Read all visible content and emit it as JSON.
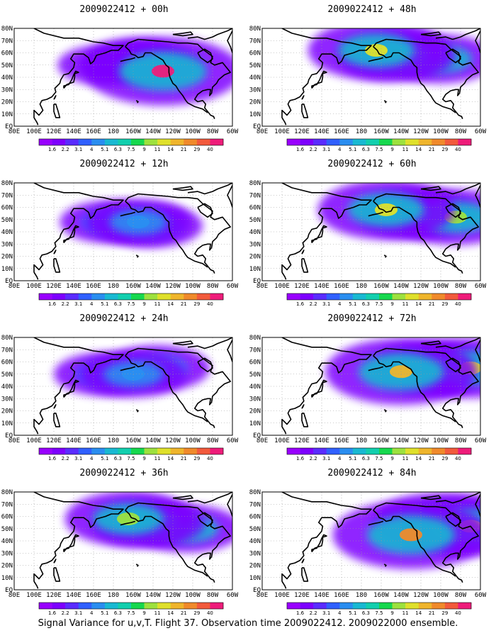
{
  "figure": {
    "caption": "Signal Variance for u,v,T. Flight 37. Observation time 2009022412. 2009022000 ensemble."
  },
  "axes": {
    "lon_ticks": [
      "80E",
      "100E",
      "120E",
      "140E",
      "160E",
      "180",
      "160W",
      "140W",
      "120W",
      "100W",
      "80W",
      "60W"
    ],
    "lat_ticks": [
      "EQ",
      "10N",
      "20N",
      "30N",
      "40N",
      "50N",
      "60N",
      "70N",
      "80N"
    ],
    "lon_range_deg_east": [
      80,
      300
    ],
    "lat_range": [
      0,
      80
    ]
  },
  "colorbar": {
    "levels": [
      "1.6",
      "2.2",
      "3.1",
      "4",
      "5.1",
      "6.3",
      "7.5",
      "9",
      "11",
      "14",
      "21",
      "29",
      "40"
    ],
    "colors": [
      "#9900ff",
      "#7d00ff",
      "#5a2cff",
      "#3060ff",
      "#2a8ef0",
      "#19b9d2",
      "#12cfae",
      "#16d84e",
      "#9de13e",
      "#dfe02b",
      "#efb52c",
      "#f08a2b",
      "#f25a3c",
      "#ee1c7a"
    ]
  },
  "coast_color": "#000000",
  "grid_color": "#999999",
  "chart_data": [
    {
      "type": "heatmap",
      "title": "2009022412 + 00h",
      "variable": "signal variance (u,v,T)",
      "field": [
        {
          "lon": 170,
          "lat": 50,
          "value": 2.0
        },
        {
          "lon": 200,
          "lat": 55,
          "value": 2.5
        },
        {
          "lon": 220,
          "lat": 50,
          "value": 3.0
        },
        {
          "lon": 230,
          "lat": 45,
          "value": 40
        }
      ]
    },
    {
      "type": "heatmap",
      "title": "2009022412 + 12h",
      "variable": "signal variance (u,v,T)",
      "field": [
        {
          "lon": 175,
          "lat": 48,
          "value": 3.1
        },
        {
          "lon": 205,
          "lat": 48,
          "value": 4.5
        },
        {
          "lon": 220,
          "lat": 45,
          "value": 3.5
        }
      ]
    },
    {
      "type": "heatmap",
      "title": "2009022412 + 24h",
      "variable": "signal variance (u,v,T)",
      "field": [
        {
          "lon": 170,
          "lat": 50,
          "value": 3.5
        },
        {
          "lon": 200,
          "lat": 50,
          "value": 5.0
        },
        {
          "lon": 225,
          "lat": 55,
          "value": 4.5
        }
      ]
    },
    {
      "type": "heatmap",
      "title": "2009022412 + 36h",
      "variable": "signal variance (u,v,T)",
      "field": [
        {
          "lon": 195,
          "lat": 58,
          "value": 9.0
        },
        {
          "lon": 215,
          "lat": 55,
          "value": 6.5
        },
        {
          "lon": 255,
          "lat": 50,
          "value": 5.5
        }
      ]
    },
    {
      "type": "heatmap",
      "title": "2009022412 + 48h",
      "variable": "signal variance (u,v,T)",
      "field": [
        {
          "lon": 195,
          "lat": 62,
          "value": 11
        },
        {
          "lon": 215,
          "lat": 58,
          "value": 7.5
        },
        {
          "lon": 260,
          "lat": 55,
          "value": 6.0
        }
      ]
    },
    {
      "type": "heatmap",
      "title": "2009022412 + 60h",
      "variable": "signal variance (u,v,T)",
      "field": [
        {
          "lon": 205,
          "lat": 58,
          "value": 11
        },
        {
          "lon": 235,
          "lat": 55,
          "value": 7.5
        },
        {
          "lon": 275,
          "lat": 52,
          "value": 9.0
        }
      ]
    },
    {
      "type": "heatmap",
      "title": "2009022412 + 72h",
      "variable": "signal variance (u,v,T)",
      "field": [
        {
          "lon": 220,
          "lat": 52,
          "value": 14
        },
        {
          "lon": 250,
          "lat": 55,
          "value": 9.0
        },
        {
          "lon": 290,
          "lat": 55,
          "value": 11
        }
      ]
    },
    {
      "type": "heatmap",
      "title": "2009022412 + 84h",
      "variable": "signal variance (u,v,T)",
      "field": [
        {
          "lon": 230,
          "lat": 45,
          "value": 21
        },
        {
          "lon": 260,
          "lat": 55,
          "value": 11
        },
        {
          "lon": 290,
          "lat": 52,
          "value": 11
        }
      ]
    }
  ]
}
